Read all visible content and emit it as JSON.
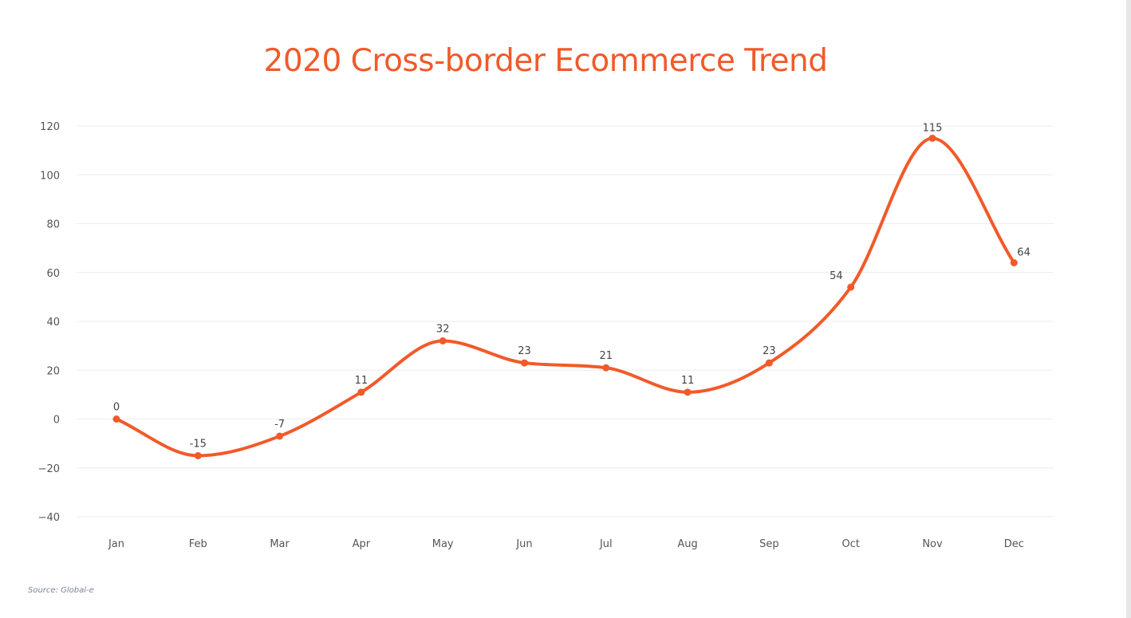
{
  "colors": {
    "accent": "#f15a29",
    "grid": "#ececec",
    "tick_text": "#555555",
    "label_text": "#444444"
  },
  "source": "Source: Global-e",
  "chart_data": {
    "type": "line",
    "title": "2020 Cross-border Ecommerce Trend",
    "xlabel": "",
    "ylabel": "",
    "categories": [
      "Jan",
      "Feb",
      "Mar",
      "Apr",
      "May",
      "Jun",
      "Jul",
      "Aug",
      "Sep",
      "Oct",
      "Nov",
      "Dec"
    ],
    "series": [
      {
        "name": "Cross-border Ecommerce",
        "values": [
          0,
          -15,
          -7,
          11,
          32,
          23,
          21,
          11,
          23,
          54,
          115,
          64
        ]
      }
    ],
    "ylim": [
      -40,
      120
    ],
    "yticks": [
      120,
      100,
      80,
      60,
      40,
      20,
      0,
      -20,
      -40
    ],
    "grid": true,
    "smooth": true
  }
}
